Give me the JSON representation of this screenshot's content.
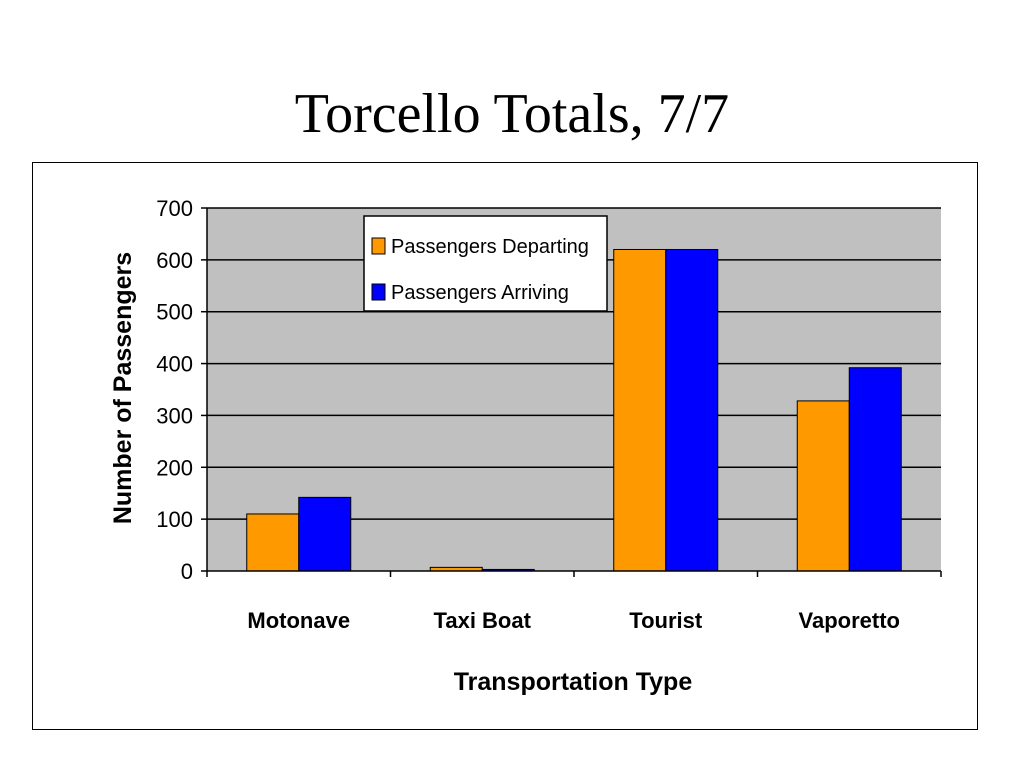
{
  "chart_data": {
    "type": "bar",
    "title": "Torcello Totals, 7/7",
    "xlabel": "Transportation Type",
    "ylabel": "Number of Passengers",
    "categories": [
      "Motonave",
      "Taxi Boat",
      "Tourist",
      "Vaporetto"
    ],
    "series": [
      {
        "name": "Passengers Departing",
        "values": [
          110,
          7,
          620,
          328
        ],
        "color": "#FF9900"
      },
      {
        "name": "Passengers Arriving",
        "values": [
          142,
          3,
          620,
          392
        ],
        "color": "#0000FF"
      }
    ],
    "ylim": [
      0,
      700
    ],
    "yticks": [
      0,
      100,
      200,
      300,
      400,
      500,
      600,
      700
    ],
    "grid": true,
    "plot_background": "#C0C0C0",
    "legend_position": "top-center"
  }
}
